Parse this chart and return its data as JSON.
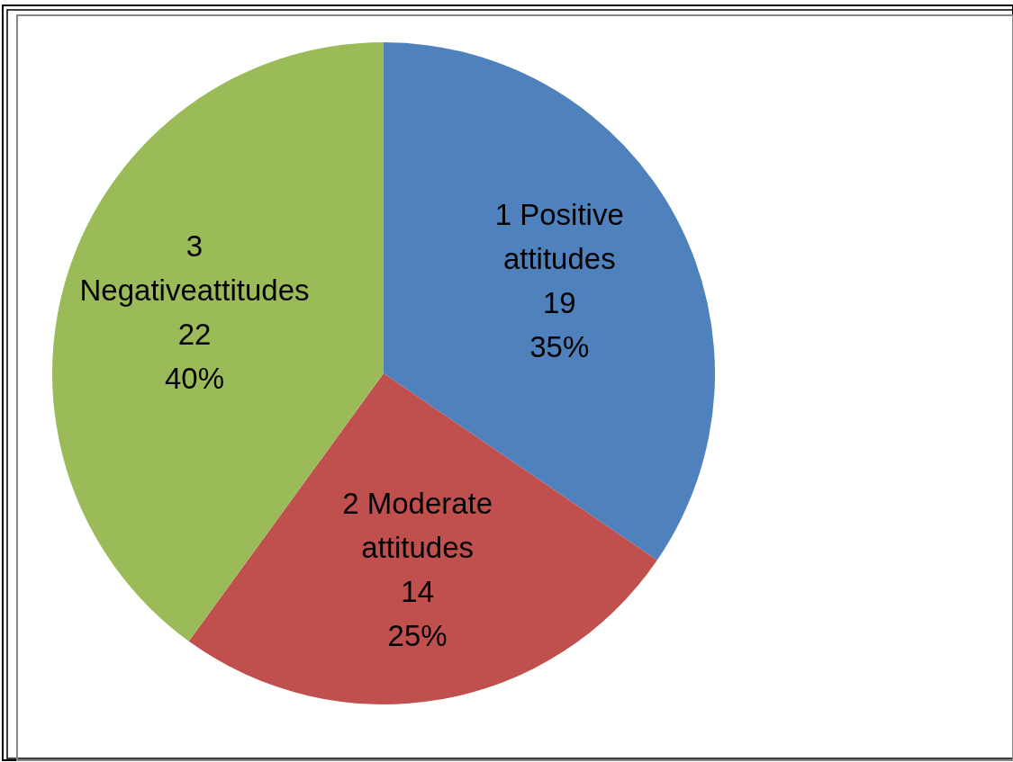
{
  "chart_data": {
    "type": "pie",
    "categories": [
      "1 Positive attitudes",
      "2 Moderate attitudes",
      "3 Negativeattitudes"
    ],
    "values": [
      19,
      14,
      22
    ],
    "colors": [
      "#4f81bd",
      "#c0504d",
      "#9bbb59"
    ],
    "value_labels": [
      "19\n35%",
      "14\n25%",
      "22\n40%"
    ]
  }
}
